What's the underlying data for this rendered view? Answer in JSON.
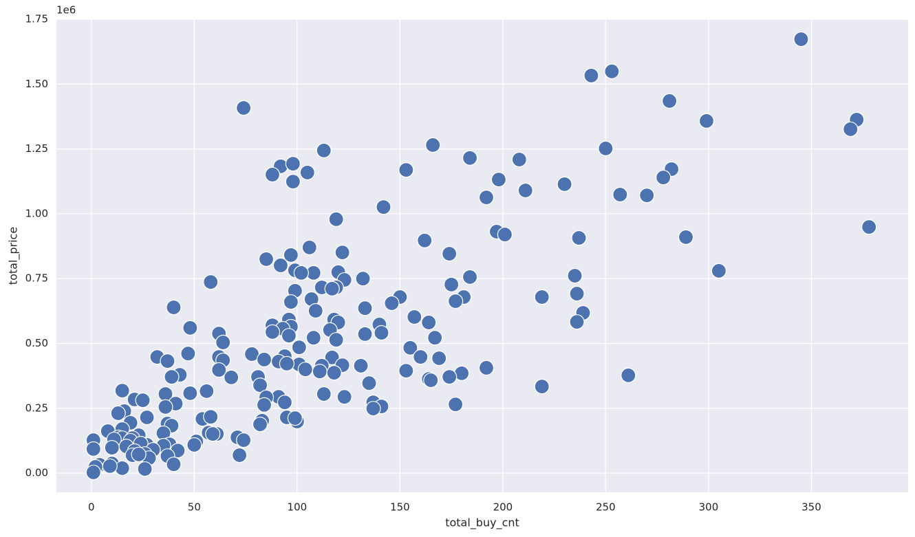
{
  "chart_data": {
    "type": "scatter",
    "x_label": "total_buy_cnt",
    "y_label": "total_price",
    "y_offset_text": "1e6",
    "color": "#4c72b0",
    "grid": true,
    "xlim": [
      -17,
      397
    ],
    "ylim": [
      -74000,
      1750000
    ],
    "xticks": [
      0,
      50,
      100,
      150,
      200,
      250,
      300,
      350
    ],
    "yticks": [
      {
        "value": 0,
        "label": "0.00"
      },
      {
        "value": 250000,
        "label": "0.25"
      },
      {
        "value": 500000,
        "label": "0.50"
      },
      {
        "value": 750000,
        "label": "0.75"
      },
      {
        "value": 1000000,
        "label": "1.00"
      },
      {
        "value": 1250000,
        "label": "1.25"
      },
      {
        "value": 1500000,
        "label": "1.50"
      },
      {
        "value": 1750000,
        "label": "1.75"
      }
    ],
    "x": [
      345,
      253,
      243,
      281,
      74,
      372,
      299,
      369,
      250,
      113,
      166,
      184,
      208,
      92,
      98,
      153,
      282,
      105,
      88,
      278,
      230,
      198,
      98,
      211,
      257,
      270,
      192,
      142,
      119,
      378,
      197,
      201,
      289,
      237,
      162,
      106,
      122,
      174,
      97,
      85,
      92,
      99,
      108,
      102,
      120,
      305,
      184,
      235,
      132,
      123,
      58,
      175,
      112,
      119,
      117,
      99,
      236,
      181,
      219,
      150,
      107,
      177,
      97,
      146,
      40,
      133,
      109,
      239,
      157,
      96,
      118,
      236,
      164,
      120,
      140,
      88,
      97,
      48,
      116,
      93,
      141,
      62,
      88,
      133,
      96,
      108,
      167,
      119,
      64,
      155,
      101,
      160,
      169,
      78,
      47,
      32,
      94,
      117,
      84,
      62,
      64,
      37,
      91,
      101,
      95,
      112,
      122,
      131,
      104,
      111,
      62,
      118,
      153,
      192,
      261,
      43,
      180,
      174,
      81,
      68,
      39,
      164,
      165,
      135,
      82,
      219,
      15,
      56,
      48,
      113,
      36,
      91,
      85,
      123,
      21,
      25,
      94,
      137,
      41,
      177,
      84,
      141,
      36,
      137,
      16,
      13,
      27,
      54,
      95,
      100,
      83,
      99,
      19,
      82,
      37,
      39,
      15,
      8,
      58,
      57,
      61,
      59,
      35,
      23,
      13,
      71,
      1,
      74,
      51,
      15,
      20,
      11,
      50,
      27,
      38,
      19,
      24,
      17,
      10,
      35,
      1,
      30,
      42,
      21,
      26,
      72,
      37,
      20,
      28,
      4,
      40,
      10,
      2,
      15,
      26,
      1,
      9,
      23
    ],
    "y": [
      1673000,
      1549000,
      1533000,
      1435000,
      1408000,
      1363000,
      1358000,
      1326000,
      1252000,
      1244000,
      1265000,
      1215000,
      1209000,
      1183000,
      1193000,
      1169000,
      1172000,
      1159000,
      1151000,
      1140000,
      1114000,
      1132000,
      1124000,
      1090000,
      1074000,
      1071000,
      1063000,
      1026000,
      979000,
      949000,
      931000,
      920000,
      910000,
      907000,
      897000,
      870000,
      851000,
      846000,
      841000,
      825000,
      801000,
      782000,
      772000,
      772000,
      775000,
      780000,
      756000,
      761000,
      750000,
      745000,
      737000,
      727000,
      716000,
      716000,
      711000,
      703000,
      692000,
      679000,
      679000,
      679000,
      671000,
      663000,
      660000,
      655000,
      639000,
      636000,
      626000,
      618000,
      602000,
      592000,
      592000,
      583000,
      581000,
      581000,
      573000,
      570000,
      565000,
      560000,
      552000,
      557000,
      541000,
      538000,
      544000,
      536000,
      530000,
      522000,
      522000,
      514000,
      504000,
      483000,
      485000,
      448000,
      443000,
      459000,
      461000,
      448000,
      451000,
      446000,
      438000,
      448000,
      435000,
      432000,
      430000,
      419000,
      422000,
      414000,
      416000,
      414000,
      400000,
      392000,
      398000,
      387000,
      395000,
      406000,
      377000,
      379000,
      385000,
      371000,
      371000,
      369000,
      371000,
      363000,
      358000,
      347000,
      339000,
      334000,
      318000,
      316000,
      308000,
      305000,
      305000,
      294000,
      292000,
      294000,
      284000,
      281000,
      273000,
      273000,
      268000,
      265000,
      263000,
      257000,
      255000,
      249000,
      239000,
      231000,
      215000,
      209000,
      215000,
      199000,
      202000,
      212000,
      194000,
      188000,
      191000,
      183000,
      170000,
      162000,
      217000,
      156000,
      151000,
      151000,
      154000,
      146000,
      138000,
      138000,
      127000,
      127000,
      122000,
      135000,
      135000,
      130000,
      109000,
      109000,
      111000,
      125000,
      114000,
      103000,
      98000,
      106000,
      93000,
      90000,
      87000,
      85000,
      74000,
      69000,
      66000,
      69000,
      58000,
      32000,
      34000,
      37000,
      24000,
      19000,
      16000,
      3000,
      27000,
      72000
    ]
  }
}
